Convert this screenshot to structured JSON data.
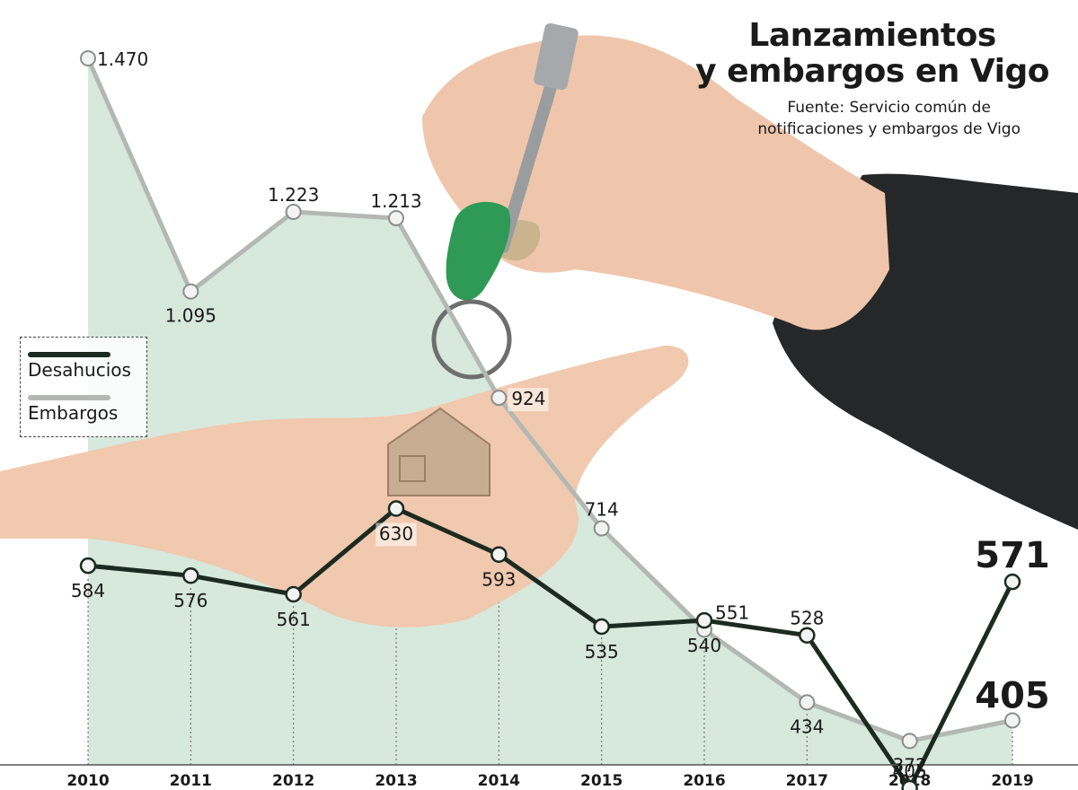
{
  "title_line1": "Lanzamientos",
  "title_line2": "y embargos en Vigo",
  "source_line1": "Fuente: Servicio común de",
  "source_line2": "notificaciones y embargos de Vigo",
  "colors": {
    "desahucios": "#1c2b22",
    "embargos": "#b3b8b5",
    "area_fill": "#d7e8dd",
    "photo_skin": "#f1c9ae",
    "photo_sleeve": "#262729"
  },
  "chart_data": {
    "type": "line",
    "x": [
      "2010",
      "2011",
      "2012",
      "2013",
      "2014",
      "2015",
      "2016",
      "2017",
      "2018",
      "2019"
    ],
    "series": [
      {
        "name": "Desahucios",
        "values": [
          584,
          576,
          561,
          630,
          593,
          535,
          540,
          528,
          405,
          571
        ],
        "labels": [
          "584",
          "576",
          "561",
          "630",
          "593",
          "535",
          "540",
          "528",
          "405",
          "571"
        ]
      },
      {
        "name": "Embargos",
        "values": [
          1470,
          1095,
          1223,
          1213,
          924,
          714,
          551,
          434,
          372,
          405
        ],
        "labels": [
          "1.470",
          "1.095",
          "1.223",
          "1.213",
          "924",
          "714",
          "551",
          "434",
          "372",
          "405"
        ]
      }
    ],
    "xlabel": "",
    "ylabel": "",
    "grid": false,
    "legend": "left-middle"
  }
}
